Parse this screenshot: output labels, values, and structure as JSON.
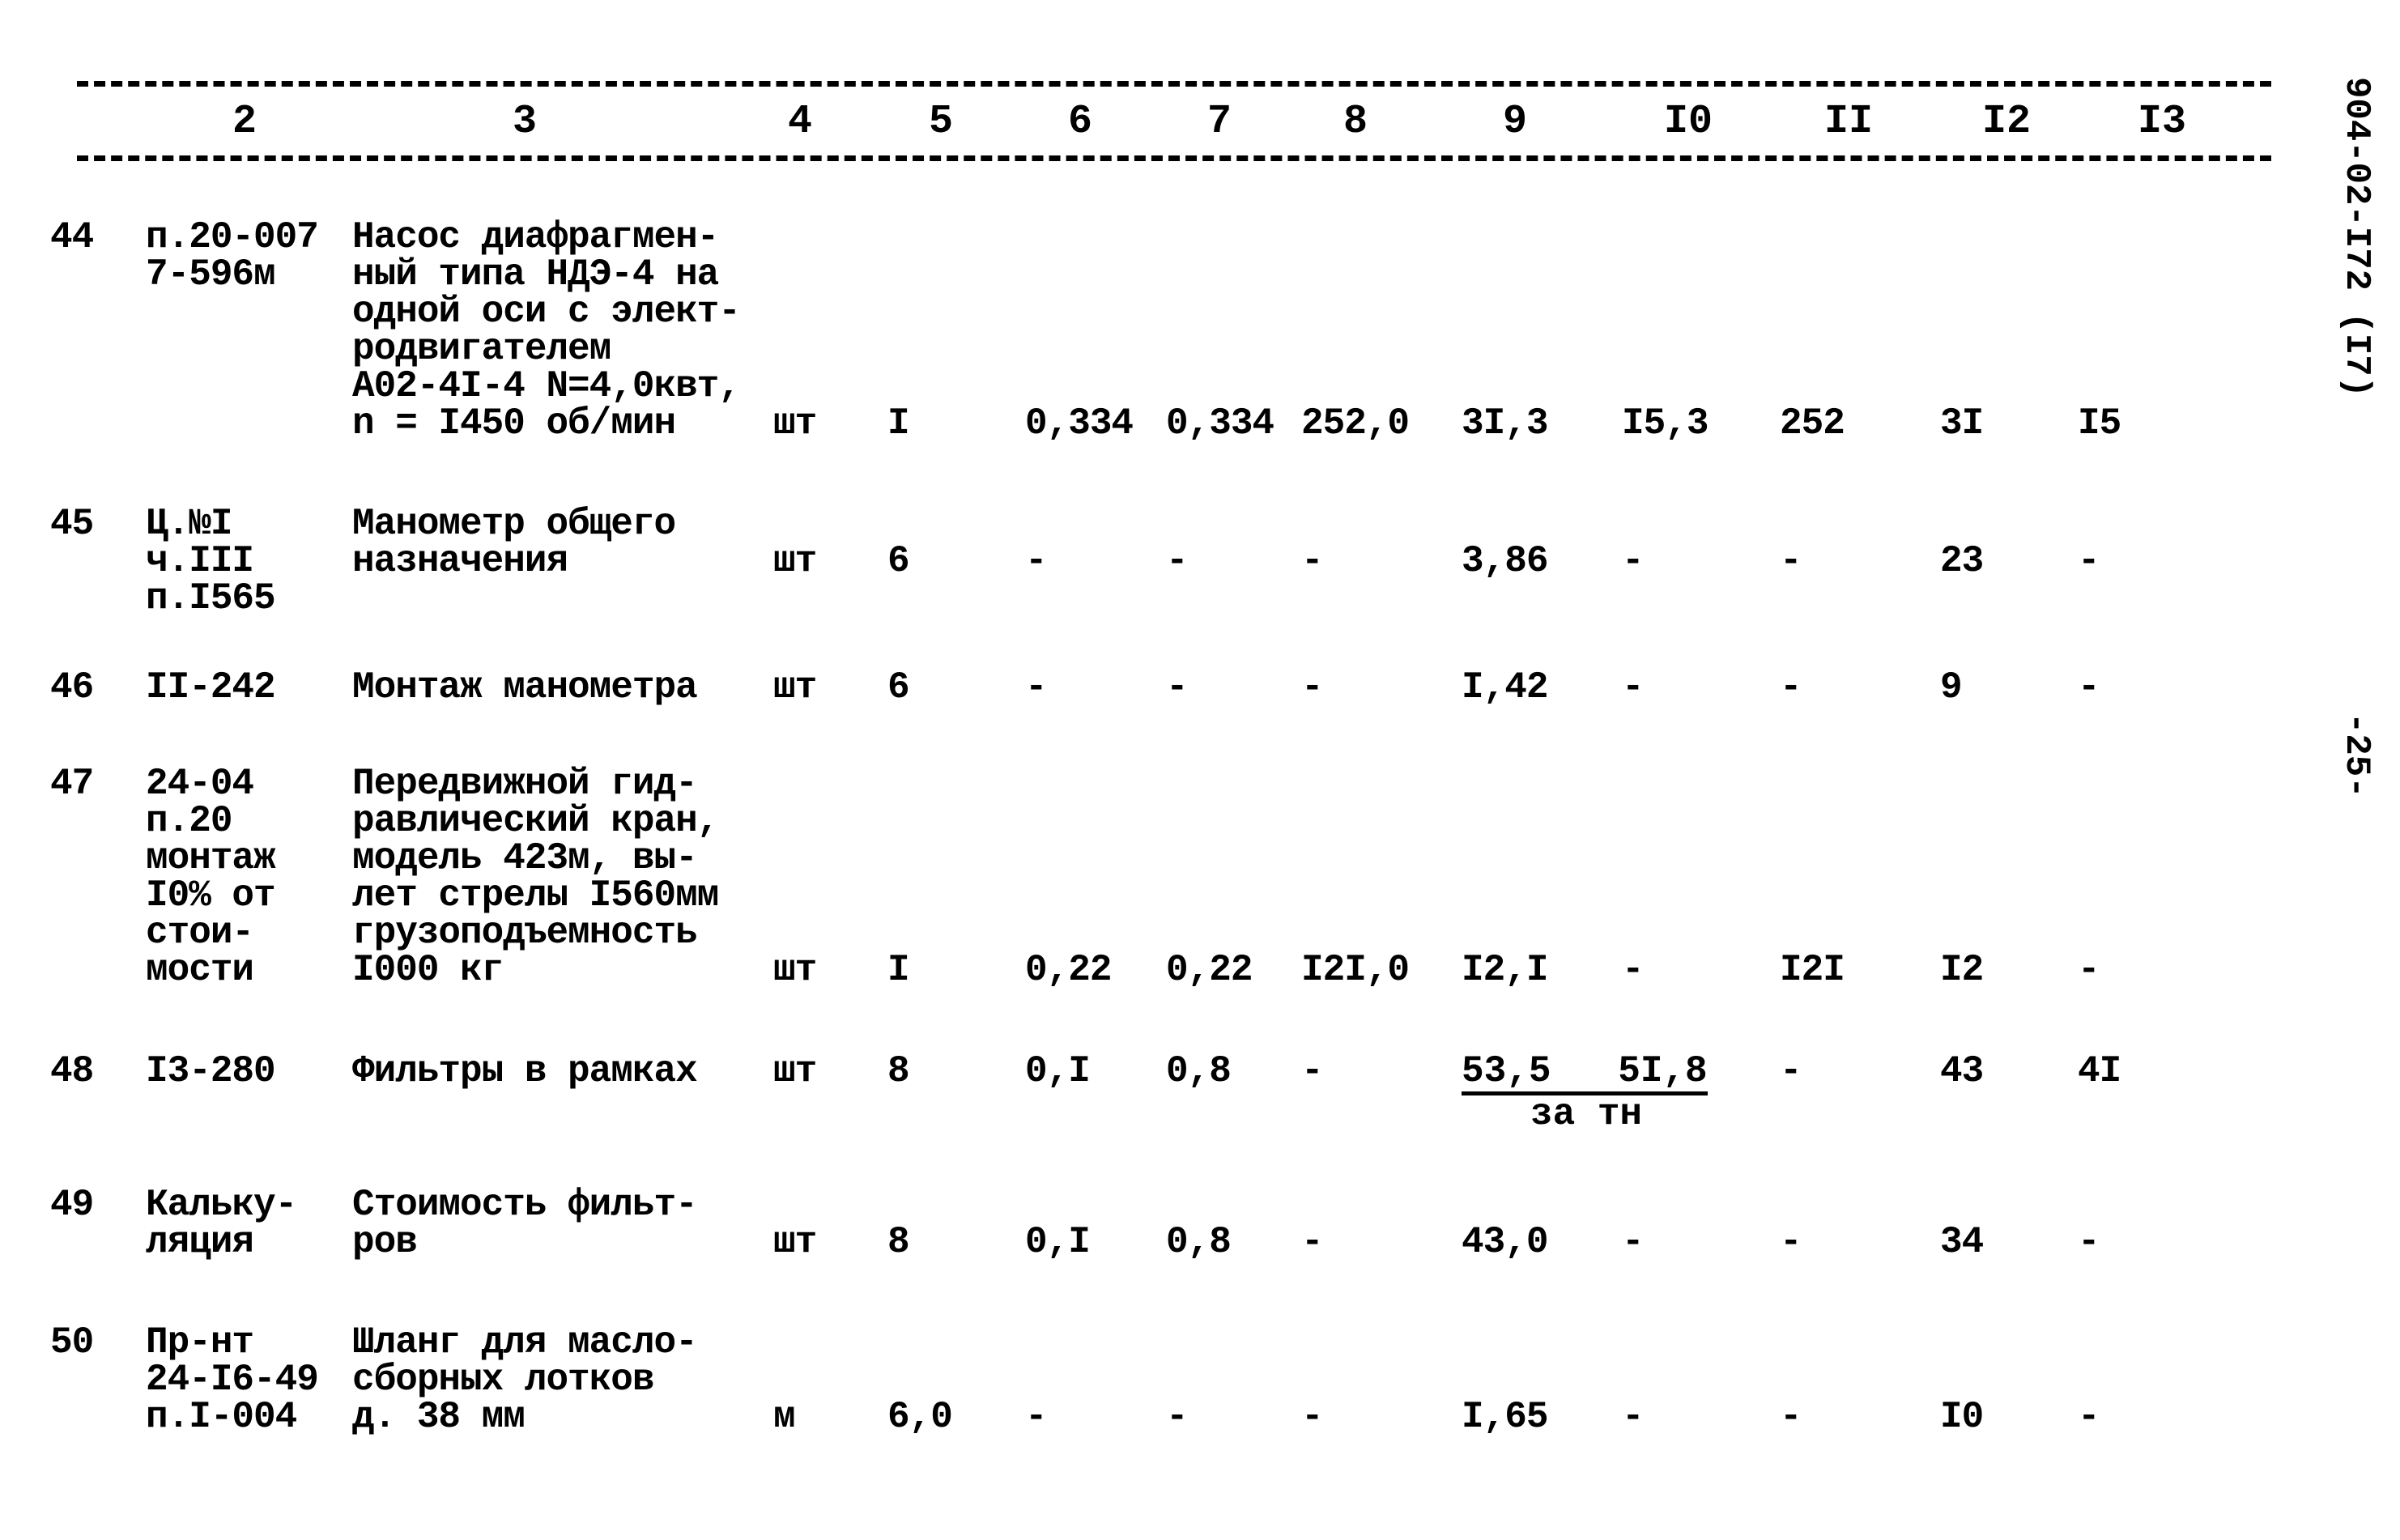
{
  "header": {
    "columns": [
      "2",
      "3",
      "4",
      "5",
      "6",
      "7",
      "8",
      "9",
      "I0",
      "II",
      "I2",
      "I3"
    ]
  },
  "side": {
    "doc_code": "904-02-I72 (I7)",
    "page": "-25-"
  },
  "rows": [
    {
      "no": "44",
      "code": "п.20-007\n7-596м",
      "desc": "Насос диафрагмен-\nный типа НДЭ-4 на\nодной оси с элект-\nродвигателем\nА02-4I-4 N=4,0квт,\nn = I450 об/мин",
      "unit": "шт",
      "c5": "I",
      "c6": "0,334",
      "c7": "0,334",
      "c8": "252,0",
      "c9": "3I,3",
      "c10": "I5,3",
      "c11": "252",
      "c12": "3I",
      "c13": "I5"
    },
    {
      "no": "45",
      "code": "Ц.№I\nч.III\nп.I565",
      "desc": "Манометр общего\nназначения",
      "unit": "шт",
      "c5": "6",
      "c6": "-",
      "c7": "-",
      "c8": "-",
      "c9": "3,86",
      "c10": "-",
      "c11": "-",
      "c12": "23",
      "c13": "-"
    },
    {
      "no": "46",
      "code": "II-242",
      "desc": "Монтаж манометра",
      "unit": "шт",
      "c5": "6",
      "c6": "-",
      "c7": "-",
      "c8": "-",
      "c9": "I,42",
      "c10": "-",
      "c11": "-",
      "c12": "9",
      "c13": "-"
    },
    {
      "no": "47",
      "code": "24-04\nп.20\nмонтаж\nI0% от\nстои-\nмости",
      "desc": "Передвижной гид-\nравлический кран,\nмодель 423м, вы-\nлет стрелы I560мм\nгрузоподъемность\nI000 кг",
      "unit": "шт",
      "c5": "I",
      "c6": "0,22",
      "c7": "0,22",
      "c8": "I2I,0",
      "c9": "I2,I",
      "c10": "-",
      "c11": "I2I",
      "c12": "I2",
      "c13": "-"
    },
    {
      "no": "48",
      "code": "I3-280",
      "desc": "Фильтры в рамках",
      "unit": "шт",
      "c5": "8",
      "c6": "0,I",
      "c7": "0,8",
      "c8": "-",
      "c9_10": "53,5   5I,8",
      "c9_10_note": "за тн",
      "c11": "-",
      "c12": "43",
      "c13": "4I"
    },
    {
      "no": "49",
      "code": "Кальку-\nляция",
      "desc": "Стоимость фильт-\nров",
      "unit": "шт",
      "c5": "8",
      "c6": "0,I",
      "c7": "0,8",
      "c8": "-",
      "c9": "43,0",
      "c10": "-",
      "c11": "-",
      "c12": "34",
      "c13": "-"
    },
    {
      "no": "50",
      "code": "Пр-нт\n24-I6-49\nп.I-004",
      "desc": "Шланг для масло-\nсборных лотков\nд. 38 мм",
      "unit": "м",
      "c5": "6,0",
      "c6": "-",
      "c7": "-",
      "c8": "-",
      "c9": "I,65",
      "c10": "-",
      "c11": "-",
      "c12": "I0",
      "c13": "-"
    }
  ]
}
